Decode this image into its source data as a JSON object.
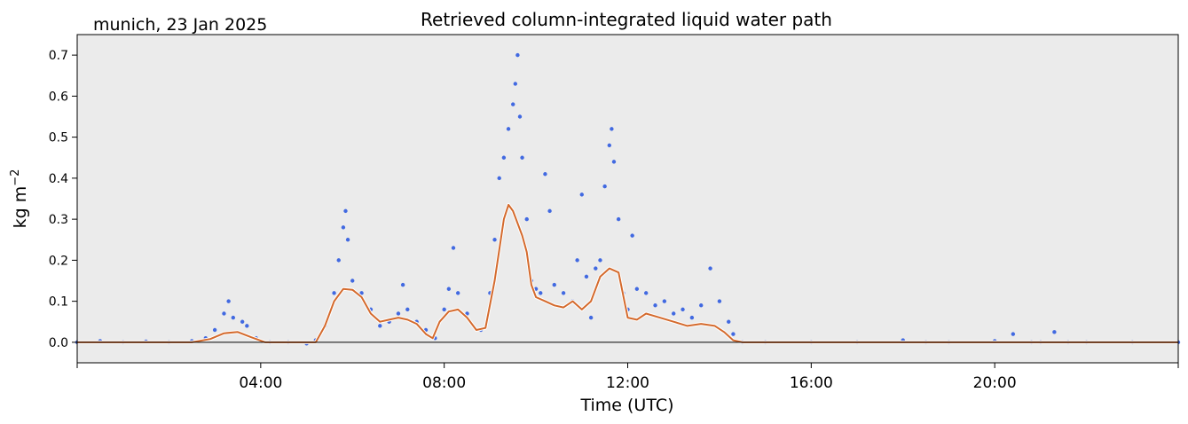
{
  "chart_data": {
    "type": "scatter",
    "title": "Retrieved column-integrated liquid water path",
    "subtitle": "munich, 23 Jan 2025",
    "xlabel": "Time (UTC)",
    "ylabel": "kg m",
    "ylabel_superscript": "−2",
    "xlim_hours": [
      0,
      24
    ],
    "ylim": [
      -0.05,
      0.75
    ],
    "x_ticks": [
      {
        "value": 4,
        "label": "04:00"
      },
      {
        "value": 8,
        "label": "08:00"
      },
      {
        "value": 12,
        "label": "12:00"
      },
      {
        "value": 16,
        "label": "16:00"
      },
      {
        "value": 20,
        "label": "20:00"
      }
    ],
    "y_ticks": [
      {
        "value": 0.0,
        "label": "0.0"
      },
      {
        "value": 0.1,
        "label": "0.1"
      },
      {
        "value": 0.2,
        "label": "0.2"
      },
      {
        "value": 0.3,
        "label": "0.3"
      },
      {
        "value": 0.4,
        "label": "0.4"
      },
      {
        "value": 0.5,
        "label": "0.5"
      },
      {
        "value": 0.6,
        "label": "0.6"
      },
      {
        "value": 0.7,
        "label": "0.7"
      }
    ],
    "grid": false,
    "legend": "none",
    "zero_line": 0.0,
    "series": [
      {
        "kind": "points",
        "color": "#4169e1",
        "points": [
          [
            0.0,
            0.0
          ],
          [
            0.5,
            0.003
          ],
          [
            1.0,
            0.0
          ],
          [
            1.5,
            0.002
          ],
          [
            2.0,
            0.0
          ],
          [
            2.5,
            0.003
          ],
          [
            2.8,
            0.01
          ],
          [
            3.0,
            0.03
          ],
          [
            3.2,
            0.07
          ],
          [
            3.3,
            0.1
          ],
          [
            3.4,
            0.06
          ],
          [
            3.6,
            0.05
          ],
          [
            3.7,
            0.04
          ],
          [
            3.9,
            0.01
          ],
          [
            4.2,
            0.0
          ],
          [
            4.6,
            0.0
          ],
          [
            5.0,
            -0.003
          ],
          [
            5.2,
            0.005
          ],
          [
            5.4,
            0.04
          ],
          [
            5.6,
            0.12
          ],
          [
            5.7,
            0.2
          ],
          [
            5.8,
            0.28
          ],
          [
            5.85,
            0.32
          ],
          [
            5.9,
            0.25
          ],
          [
            6.0,
            0.15
          ],
          [
            6.2,
            0.12
          ],
          [
            6.4,
            0.08
          ],
          [
            6.6,
            0.04
          ],
          [
            6.8,
            0.05
          ],
          [
            7.0,
            0.07
          ],
          [
            7.1,
            0.14
          ],
          [
            7.2,
            0.08
          ],
          [
            7.4,
            0.05
          ],
          [
            7.6,
            0.03
          ],
          [
            7.8,
            0.01
          ],
          [
            8.0,
            0.08
          ],
          [
            8.1,
            0.13
          ],
          [
            8.2,
            0.23
          ],
          [
            8.3,
            0.12
          ],
          [
            8.5,
            0.07
          ],
          [
            8.8,
            0.03
          ],
          [
            9.0,
            0.12
          ],
          [
            9.1,
            0.25
          ],
          [
            9.2,
            0.4
          ],
          [
            9.3,
            0.45
          ],
          [
            9.4,
            0.52
          ],
          [
            9.5,
            0.58
          ],
          [
            9.55,
            0.63
          ],
          [
            9.6,
            0.7
          ],
          [
            9.65,
            0.55
          ],
          [
            9.7,
            0.45
          ],
          [
            9.8,
            0.3
          ],
          [
            9.9,
            0.15
          ],
          [
            10.0,
            0.13
          ],
          [
            10.1,
            0.12
          ],
          [
            10.2,
            0.41
          ],
          [
            10.3,
            0.32
          ],
          [
            10.4,
            0.14
          ],
          [
            10.6,
            0.12
          ],
          [
            10.8,
            0.1
          ],
          [
            10.9,
            0.2
          ],
          [
            11.0,
            0.36
          ],
          [
            11.1,
            0.16
          ],
          [
            11.2,
            0.06
          ],
          [
            11.3,
            0.18
          ],
          [
            11.4,
            0.2
          ],
          [
            11.5,
            0.38
          ],
          [
            11.6,
            0.48
          ],
          [
            11.65,
            0.52
          ],
          [
            11.7,
            0.44
          ],
          [
            11.8,
            0.3
          ],
          [
            11.9,
            0.12
          ],
          [
            12.0,
            0.08
          ],
          [
            12.1,
            0.26
          ],
          [
            12.2,
            0.13
          ],
          [
            12.4,
            0.12
          ],
          [
            12.6,
            0.09
          ],
          [
            12.8,
            0.1
          ],
          [
            13.0,
            0.07
          ],
          [
            13.2,
            0.08
          ],
          [
            13.4,
            0.06
          ],
          [
            13.6,
            0.09
          ],
          [
            13.8,
            0.18
          ],
          [
            14.0,
            0.1
          ],
          [
            14.2,
            0.05
          ],
          [
            14.3,
            0.02
          ],
          [
            14.5,
            0.0
          ],
          [
            15.0,
            0.0
          ],
          [
            16.0,
            0.0
          ],
          [
            17.0,
            0.0
          ],
          [
            18.0,
            0.005
          ],
          [
            18.5,
            0.0
          ],
          [
            19.0,
            0.0
          ],
          [
            20.0,
            0.003
          ],
          [
            20.4,
            0.02
          ],
          [
            20.8,
            0.0
          ],
          [
            21.0,
            0.0
          ],
          [
            21.3,
            0.025
          ],
          [
            21.6,
            0.0
          ],
          [
            22.0,
            0.0
          ],
          [
            23.0,
            0.0
          ],
          [
            24.0,
            0.0
          ]
        ]
      },
      {
        "kind": "line",
        "color": "#d46a2d",
        "points": [
          [
            0.0,
            0.0
          ],
          [
            2.5,
            0.0
          ],
          [
            2.9,
            0.008
          ],
          [
            3.2,
            0.022
          ],
          [
            3.5,
            0.025
          ],
          [
            3.8,
            0.012
          ],
          [
            4.1,
            0.0
          ],
          [
            5.0,
            0.0
          ],
          [
            5.2,
            0.0
          ],
          [
            5.4,
            0.04
          ],
          [
            5.6,
            0.1
          ],
          [
            5.8,
            0.13
          ],
          [
            6.0,
            0.128
          ],
          [
            6.2,
            0.11
          ],
          [
            6.4,
            0.07
          ],
          [
            6.6,
            0.05
          ],
          [
            6.8,
            0.055
          ],
          [
            7.0,
            0.06
          ],
          [
            7.2,
            0.055
          ],
          [
            7.4,
            0.045
          ],
          [
            7.6,
            0.02
          ],
          [
            7.75,
            0.01
          ],
          [
            7.9,
            0.05
          ],
          [
            8.1,
            0.075
          ],
          [
            8.3,
            0.08
          ],
          [
            8.5,
            0.06
          ],
          [
            8.7,
            0.03
          ],
          [
            8.9,
            0.035
          ],
          [
            9.1,
            0.15
          ],
          [
            9.3,
            0.3
          ],
          [
            9.4,
            0.335
          ],
          [
            9.5,
            0.32
          ],
          [
            9.7,
            0.26
          ],
          [
            9.8,
            0.22
          ],
          [
            9.9,
            0.14
          ],
          [
            10.0,
            0.11
          ],
          [
            10.2,
            0.1
          ],
          [
            10.4,
            0.09
          ],
          [
            10.6,
            0.085
          ],
          [
            10.8,
            0.1
          ],
          [
            11.0,
            0.08
          ],
          [
            11.2,
            0.1
          ],
          [
            11.4,
            0.16
          ],
          [
            11.6,
            0.18
          ],
          [
            11.8,
            0.17
          ],
          [
            12.0,
            0.06
          ],
          [
            12.2,
            0.055
          ],
          [
            12.4,
            0.07
          ],
          [
            12.7,
            0.06
          ],
          [
            13.0,
            0.05
          ],
          [
            13.3,
            0.04
          ],
          [
            13.6,
            0.045
          ],
          [
            13.9,
            0.04
          ],
          [
            14.1,
            0.025
          ],
          [
            14.3,
            0.005
          ],
          [
            14.5,
            0.0
          ],
          [
            24.0,
            0.0
          ]
        ]
      }
    ]
  }
}
